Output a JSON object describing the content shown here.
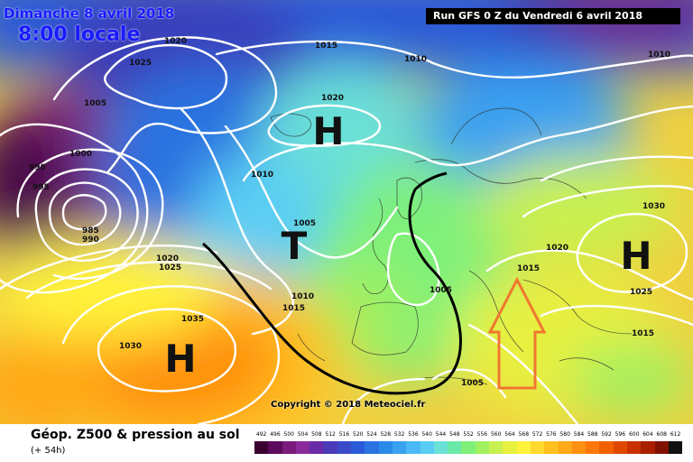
{
  "header": {
    "date_line": "Dimanche 8 avril 2018",
    "time_line": "8:00 locale",
    "run_line": "Run GFS 0 Z du Vendredi 6 avril 2018"
  },
  "footer": {
    "product_title": "Géop. Z500 & pression au sol",
    "product_sub": "(+ 54h)",
    "copyright": "Copyright © 2018 Meteociel.fr"
  },
  "isobar_labels": [
    "1020",
    "1025",
    "1005",
    "1000",
    "990",
    "995",
    "985",
    "990",
    "1015",
    "1010",
    "1020",
    "1010",
    "1005",
    "1020",
    "1025",
    "1035",
    "1030",
    "1010",
    "1015",
    "1005",
    "1020",
    "1015",
    "1030",
    "1025",
    "1015",
    "1005",
    "1010"
  ],
  "pressure_centers": [
    "H",
    "H",
    "T",
    "H"
  ],
  "scale": {
    "labels": [
      "492",
      "496",
      "500",
      "504",
      "508",
      "512",
      "516",
      "520",
      "524",
      "528",
      "532",
      "536",
      "540",
      "544",
      "548",
      "552",
      "556",
      "560",
      "564",
      "568",
      "572",
      "576",
      "580",
      "584",
      "588",
      "592",
      "596",
      "600",
      "604",
      "608",
      "612"
    ],
    "colors": [
      "#3a0030",
      "#5c0a5c",
      "#7a1a7a",
      "#8a2a9a",
      "#6a2aa8",
      "#4a3ab8",
      "#3a4ac8",
      "#2a5ad8",
      "#2a72e0",
      "#2a8ae8",
      "#3aa0f0",
      "#4ab8f4",
      "#5acdf4",
      "#6ae0d8",
      "#6ae8a8",
      "#7ef07a",
      "#a0f060",
      "#c8f050",
      "#e8f040",
      "#fff23a",
      "#ffd830",
      "#ffc020",
      "#ffa818",
      "#ff9010",
      "#ff7808",
      "#f06000",
      "#e04800",
      "#c83000",
      "#a82000",
      "#801000",
      "#101010"
    ]
  },
  "colors": {
    "arrow": "#f07830",
    "trough_line": "#000000",
    "isobar": "#ffffff"
  }
}
